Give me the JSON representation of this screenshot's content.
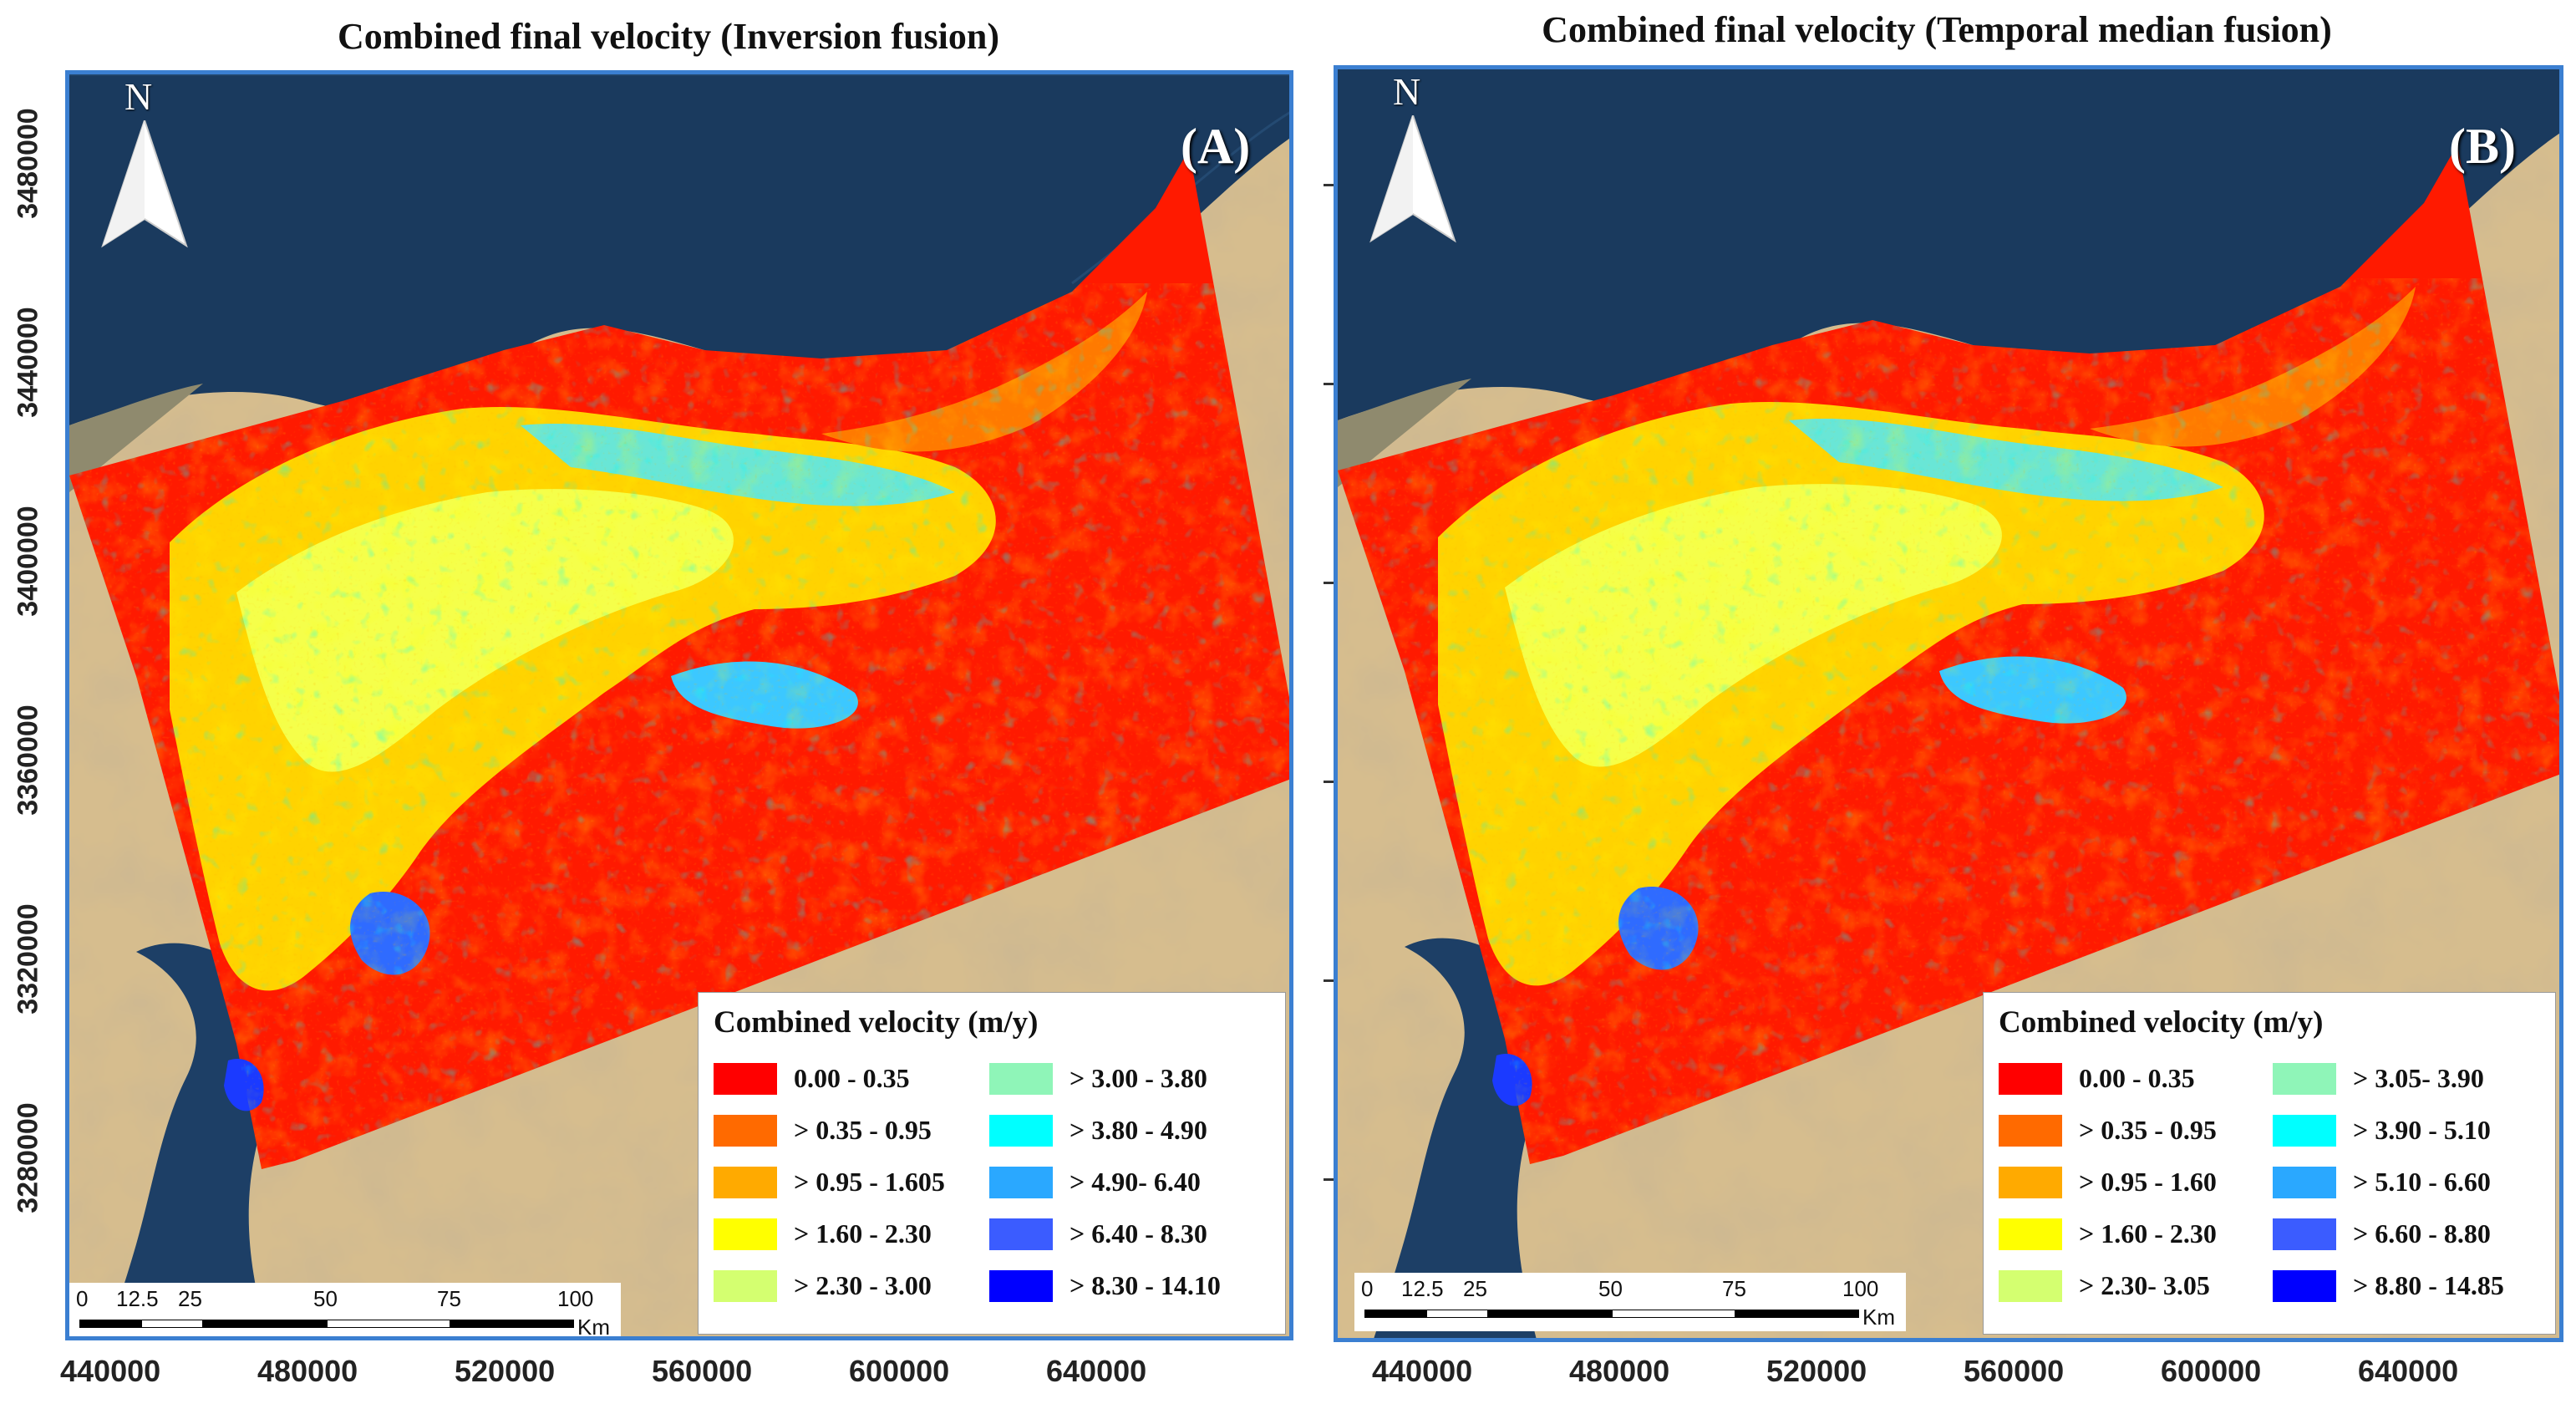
{
  "panels": [
    {
      "title": "Combined final velocity (Inversion fusion)",
      "label": "(A)",
      "north": "N",
      "legend": {
        "title": "Combined velocity (m/y)",
        "classes": [
          {
            "label": "0.00 - 0.35",
            "color": "#ff0000"
          },
          {
            "label": "> 0.35 - 0.95",
            "color": "#ff6a00"
          },
          {
            "label": "> 0.95 - 1.605",
            "color": "#ffaa00"
          },
          {
            "label": "> 1.60 - 2.30",
            "color": "#ffff00"
          },
          {
            "label": "> 2.30 - 3.00",
            "color": "#d4ff70"
          },
          {
            "label": "> 3.00 - 3.80",
            "color": "#8ff5b8"
          },
          {
            "label": "> 3.80 - 4.90",
            "color": "#00ffff"
          },
          {
            "label": "> 4.90- 6.40",
            "color": "#2aa8ff"
          },
          {
            "label": "> 6.40 - 8.30",
            "color": "#3b5cff"
          },
          {
            "label": "> 8.30 - 14.10",
            "color": "#0000ff"
          }
        ]
      },
      "scale": {
        "ticks": [
          "0",
          "12.5",
          "25",
          "50",
          "75",
          "100"
        ],
        "unit": "Km"
      },
      "y_ticks": [
        "3480000",
        "3440000",
        "3400000",
        "3360000",
        "3320000",
        "3280000"
      ],
      "x_ticks": [
        "440000",
        "480000",
        "520000",
        "560000",
        "600000",
        "640000"
      ]
    },
    {
      "title": "Combined final velocity (Temporal median fusion)",
      "label": "(B)",
      "north": "N",
      "legend": {
        "title": "Combined velocity (m/y)",
        "classes": [
          {
            "label": "0.00 - 0.35",
            "color": "#ff0000"
          },
          {
            "label": "> 0.35 - 0.95",
            "color": "#ff6a00"
          },
          {
            "label": "> 0.95 - 1.60",
            "color": "#ffaa00"
          },
          {
            "label": "> 1.60 - 2.30",
            "color": "#ffff00"
          },
          {
            "label": "> 2.30- 3.05",
            "color": "#d4ff70"
          },
          {
            "label": "> 3.05- 3.90",
            "color": "#8ff5b8"
          },
          {
            "label": "> 3.90 - 5.10",
            "color": "#00ffff"
          },
          {
            "label": "> 5.10 - 6.60",
            "color": "#2aa8ff"
          },
          {
            "label": "> 6.60 - 8.80",
            "color": "#3b5cff"
          },
          {
            "label": "> 8.80 - 14.85",
            "color": "#0000ff"
          }
        ]
      },
      "scale": {
        "ticks": [
          "0",
          "12.5",
          "25",
          "50",
          "75",
          "100"
        ],
        "unit": "Km"
      },
      "x_ticks": [
        "440000",
        "480000",
        "520000",
        "560000",
        "600000",
        "640000"
      ]
    }
  ]
}
